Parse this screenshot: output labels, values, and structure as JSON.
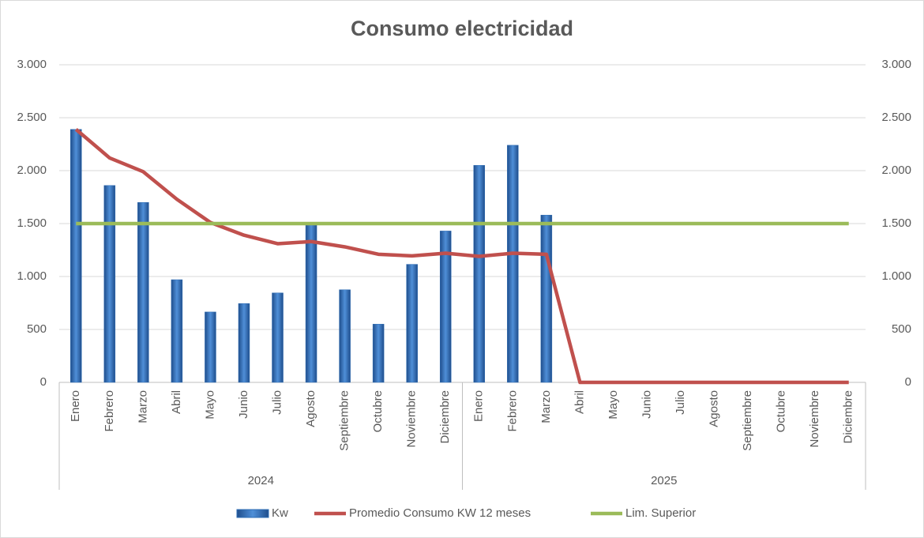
{
  "chart_data": {
    "type": "combo",
    "title": "Consumo electricidad",
    "categories": [
      "Enero",
      "Febrero",
      "Marzo",
      "Abril",
      "Mayo",
      "Junio",
      "Julio",
      "Agosto",
      "Septiembre",
      "Octubre",
      "Noviembre",
      "Diciembre",
      "Enero",
      "Febrero",
      "Marzo",
      "Abril",
      "Mayo",
      "Junio",
      "Julio",
      "Agosto",
      "Septiembre",
      "Octubre",
      "Noviembre",
      "Diciembre"
    ],
    "category_groups": [
      "2024",
      "2025"
    ],
    "series": [
      {
        "name": "Kw",
        "type": "bar",
        "color": "#2e6db4",
        "values": [
          2390,
          1860,
          1700,
          970,
          665,
          745,
          845,
          1490,
          875,
          550,
          1115,
          1430,
          2050,
          2240,
          1580,
          null,
          null,
          null,
          null,
          null,
          null,
          null,
          null,
          null
        ]
      },
      {
        "name": "Promedio Consumo KW 12 meses",
        "type": "line",
        "color": "#c0504d",
        "values": [
          2390,
          2120,
          1990,
          1730,
          1510,
          1390,
          1310,
          1330,
          1280,
          1210,
          1195,
          1220,
          1190,
          1220,
          1210,
          0,
          0,
          0,
          0,
          0,
          0,
          0,
          0,
          0
        ]
      },
      {
        "name": "Lim. Superior",
        "type": "line",
        "color": "#9bbb59",
        "values": [
          1500,
          1500,
          1500,
          1500,
          1500,
          1500,
          1500,
          1500,
          1500,
          1500,
          1500,
          1500,
          1500,
          1500,
          1500,
          1500,
          1500,
          1500,
          1500,
          1500,
          1500,
          1500,
          1500,
          1500
        ]
      }
    ],
    "ylim": [
      0,
      3000
    ],
    "yticks": [
      0,
      500,
      {
        "value": 1000,
        "label": "1.000"
      },
      {
        "value": 1500,
        "label": "1.500"
      },
      {
        "value": 2000,
        "label": "2.000"
      },
      {
        "value": 2500,
        "label": "2.500"
      },
      {
        "value": 3000,
        "label": "3.000"
      }
    ],
    "y2lim": [
      0,
      3000
    ],
    "y2ticks": [
      0,
      500,
      {
        "value": 1000,
        "label": "1.000"
      },
      {
        "value": 1500,
        "label": "1.500"
      },
      {
        "value": 2000,
        "label": "2.000"
      },
      {
        "value": 2500,
        "label": "2.500"
      },
      {
        "value": 3000,
        "label": "3.000"
      }
    ],
    "grid": true,
    "legend": "bottom"
  }
}
